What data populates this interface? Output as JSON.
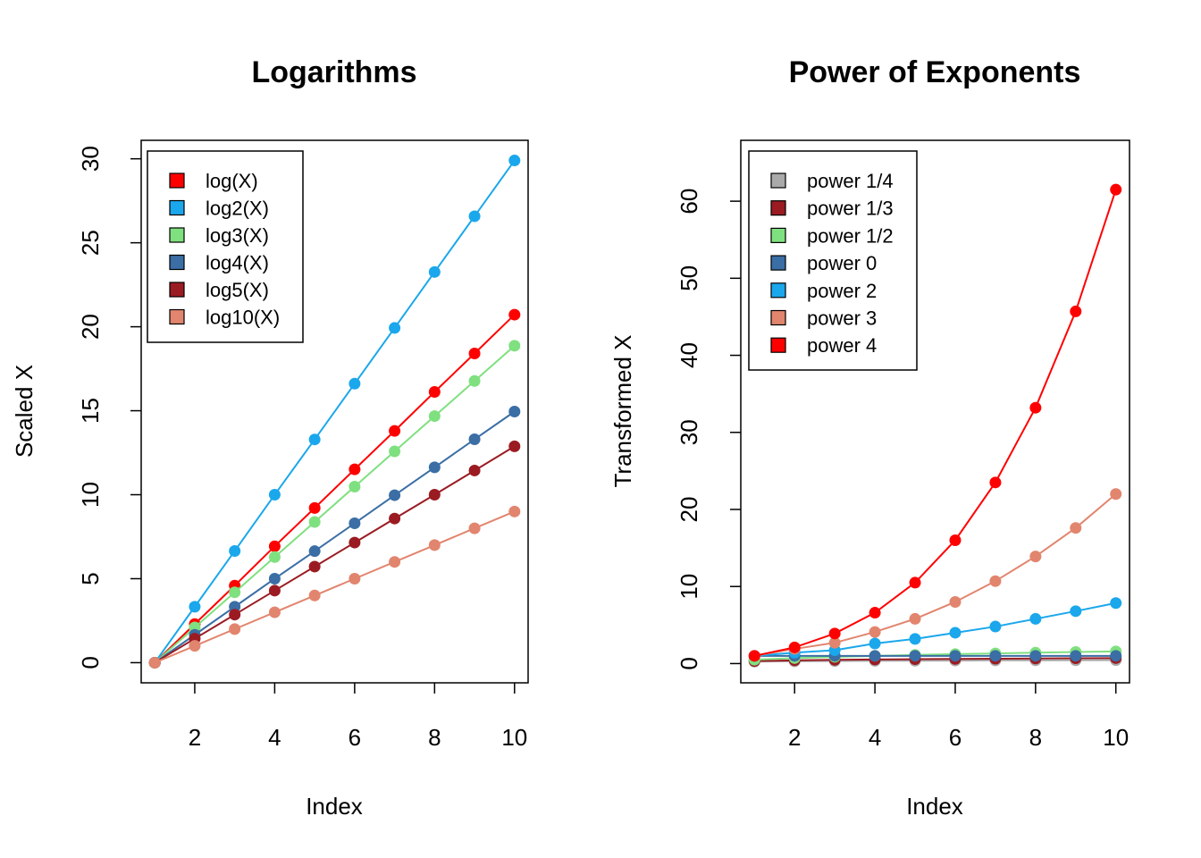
{
  "chart_data": [
    {
      "type": "line",
      "title": "Logarithms",
      "xlabel": "Index",
      "ylabel": "Scaled X",
      "xlim": [
        0.66,
        10.34
      ],
      "ylim": [
        -1.2,
        31.1
      ],
      "xticks": [
        "2",
        "4",
        "6",
        "8",
        "10"
      ],
      "yticks": [
        "0",
        "5",
        "10",
        "15",
        "20",
        "25",
        "30"
      ],
      "legend_position": "top-left",
      "x": [
        1,
        2,
        3,
        4,
        5,
        6,
        7,
        8,
        9,
        10
      ],
      "series": [
        {
          "name": "log(X)",
          "color": "#FF0000",
          "values": [
            0,
            2.3,
            4.59,
            6.93,
            9.21,
            11.51,
            13.8,
            16.12,
            18.41,
            20.72
          ]
        },
        {
          "name": "log2(X)",
          "color": "#1AA7EC",
          "values": [
            0,
            3.33,
            6.65,
            10.0,
            13.29,
            16.61,
            19.93,
            23.26,
            26.58,
            29.9
          ]
        },
        {
          "name": "log3(X)",
          "color": "#7FE07F",
          "values": [
            0,
            2.1,
            4.19,
            6.29,
            8.38,
            10.48,
            12.58,
            14.68,
            16.77,
            18.87
          ]
        },
        {
          "name": "log4(X)",
          "color": "#3A6EA5",
          "values": [
            0,
            1.66,
            3.33,
            5.0,
            6.64,
            8.3,
            9.97,
            11.63,
            13.3,
            14.95
          ]
        },
        {
          "name": "log5(X)",
          "color": "#9B1B22",
          "values": [
            0,
            1.43,
            2.86,
            4.29,
            5.72,
            7.15,
            8.58,
            10.0,
            11.44,
            12.88
          ]
        },
        {
          "name": "log10(X)",
          "color": "#E2856E",
          "values": [
            0,
            1,
            2,
            3,
            4,
            5,
            6,
            7,
            8,
            9
          ]
        }
      ]
    },
    {
      "type": "line",
      "title": "Power of Exponents",
      "xlabel": "Index",
      "ylabel": "Transformed X",
      "xlim": [
        0.66,
        10.34
      ],
      "ylim": [
        -2.5,
        67.9
      ],
      "xticks": [
        "2",
        "4",
        "6",
        "8",
        "10"
      ],
      "yticks": [
        "0",
        "10",
        "20",
        "30",
        "40",
        "50",
        "60"
      ],
      "legend_position": "top-left",
      "x": [
        1,
        2,
        3,
        4,
        5,
        6,
        7,
        8,
        9,
        10
      ],
      "series": [
        {
          "name": "power 1/4",
          "color": "#AAAAAA",
          "values": [
            0.25,
            0.3,
            0.33,
            0.35,
            0.37,
            0.39,
            0.41,
            0.42,
            0.43,
            0.44
          ]
        },
        {
          "name": "power 1/3",
          "color": "#9B1B22",
          "values": [
            0.33,
            0.42,
            0.48,
            0.53,
            0.57,
            0.6,
            0.63,
            0.66,
            0.69,
            0.71
          ]
        },
        {
          "name": "power 1/2",
          "color": "#7FE07F",
          "values": [
            0.5,
            0.71,
            0.87,
            1.0,
            1.12,
            1.22,
            1.32,
            1.41,
            1.5,
            1.58
          ]
        },
        {
          "name": "power 0",
          "color": "#3A6EA5",
          "values": [
            1,
            1,
            1,
            1,
            1,
            1,
            1,
            1,
            1,
            1
          ]
        },
        {
          "name": "power 2",
          "color": "#1AA7EC",
          "values": [
            1.0,
            1.41,
            1.73,
            2.6,
            3.2,
            4.0,
            4.8,
            5.8,
            6.8,
            7.85
          ]
        },
        {
          "name": "power 3",
          "color": "#E2856E",
          "values": [
            1.0,
            1.9,
            2.7,
            4.1,
            5.8,
            8.0,
            10.7,
            13.9,
            17.6,
            22.0
          ]
        },
        {
          "name": "power 4",
          "color": "#FF0000",
          "values": [
            1.0,
            2.1,
            3.9,
            6.6,
            10.5,
            16.0,
            23.5,
            33.2,
            45.7,
            61.5
          ]
        }
      ]
    }
  ]
}
